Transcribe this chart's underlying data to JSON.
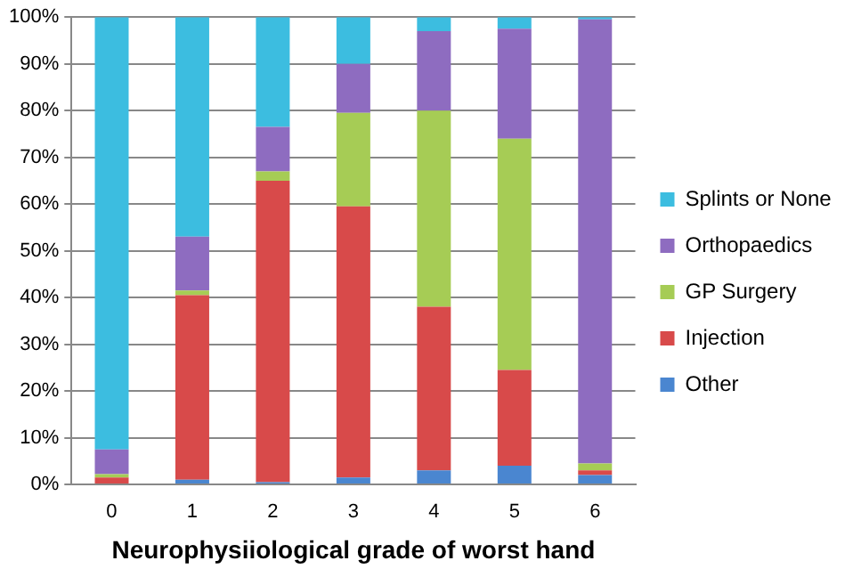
{
  "chart_data": {
    "type": "bar",
    "stacked": true,
    "xlabel": "Neurophysiiological grade of worst hand",
    "categories": [
      "0",
      "1",
      "2",
      "3",
      "4",
      "5",
      "6"
    ],
    "series": [
      {
        "name": "Other",
        "color": "#4a86d0",
        "values": [
          0,
          1,
          0.5,
          1.5,
          3,
          4,
          2
        ]
      },
      {
        "name": "Injection",
        "color": "#d84a4a",
        "values": [
          1.5,
          39.5,
          64.5,
          58,
          35,
          20.5,
          1
        ]
      },
      {
        "name": "GP Surgery",
        "color": "#a6cc55",
        "values": [
          0.7,
          1,
          2,
          20,
          42,
          49.5,
          1.5
        ]
      },
      {
        "name": "Orthopaedics",
        "color": "#8e6cc0",
        "values": [
          5.3,
          11.5,
          9.5,
          10.5,
          17,
          23.5,
          95
        ]
      },
      {
        "name": "Splints or None",
        "color": "#3cbde0",
        "values": [
          92.5,
          47,
          23.5,
          10,
          3,
          2.5,
          0.5
        ]
      }
    ],
    "ylim": [
      0,
      100
    ],
    "yticks": [
      {
        "value": 0,
        "label": "0%"
      },
      {
        "value": 10,
        "label": "10%"
      },
      {
        "value": 20,
        "label": "20%"
      },
      {
        "value": 30,
        "label": "30%"
      },
      {
        "value": 40,
        "label": "40%"
      },
      {
        "value": 50,
        "label": "50%"
      },
      {
        "value": 60,
        "label": "60%"
      },
      {
        "value": 70,
        "label": "70%"
      },
      {
        "value": 80,
        "label": "80%"
      },
      {
        "value": 90,
        "label": "90%"
      },
      {
        "value": 100,
        "label": "100%"
      }
    ],
    "grid": "y",
    "legend": "right"
  }
}
